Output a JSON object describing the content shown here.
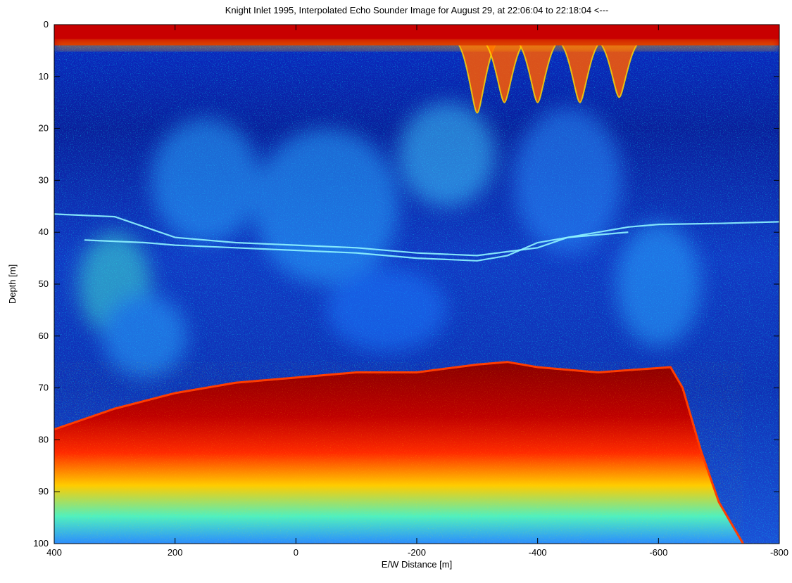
{
  "chart_data": {
    "type": "heatmap",
    "title": "Knight Inlet 1995, Interpolated Echo Sounder Image for August 29, at 22:06:04 to 22:18:04  <---",
    "xlabel": "E/W Distance [m]",
    "ylabel": "Depth [m]",
    "xlim": [
      400,
      -800
    ],
    "ylim": [
      0,
      100
    ],
    "y_reversed": true,
    "grid": false,
    "x_ticks": [
      400,
      200,
      0,
      -200,
      -400,
      -600,
      -800
    ],
    "x_tick_labels": [
      "400",
      "200",
      "0",
      "-200",
      "-400",
      "-600",
      "-800"
    ],
    "y_ticks": [
      0,
      10,
      20,
      30,
      40,
      50,
      60,
      70,
      80,
      90,
      100
    ],
    "y_tick_labels": [
      "0",
      "10",
      "20",
      "30",
      "40",
      "50",
      "60",
      "70",
      "80",
      "90",
      "100"
    ],
    "colormap": [
      "#000080",
      "#0000ff",
      "#0080ff",
      "#00ffff",
      "#80ff80",
      "#ffff00",
      "#ff8000",
      "#ff0000",
      "#800000"
    ],
    "surface_layer_depth": [
      0,
      3
    ],
    "seabed_profile": {
      "x": [
        400,
        300,
        200,
        100,
        0,
        -100,
        -200,
        -300,
        -350,
        -400,
        -500,
        -620,
        -640,
        -670,
        -700,
        -740
      ],
      "depth": [
        78,
        74,
        71,
        69,
        68,
        67,
        67,
        65.5,
        65,
        66,
        67,
        66,
        70,
        82,
        92,
        100
      ]
    },
    "scattering_lines": [
      {
        "x": [
          400,
          300,
          250,
          200,
          100,
          0,
          -100,
          -200,
          -300,
          -400,
          -450,
          -500,
          -550,
          -600,
          -700,
          -800
        ],
        "depth": [
          36.5,
          37,
          39,
          41,
          42,
          42.5,
          43,
          44,
          44.5,
          43,
          41,
          40,
          39,
          38.5,
          38.3,
          38
        ]
      },
      {
        "x": [
          350,
          250,
          200,
          100,
          0,
          -100,
          -200,
          -300,
          -350,
          -400,
          -450,
          -500,
          -550
        ],
        "depth": [
          41.5,
          42,
          42.5,
          43,
          43.5,
          44,
          45,
          45.5,
          44.5,
          42,
          41,
          40.5,
          40
        ]
      }
    ],
    "internal_waves": [
      {
        "x": -300,
        "trough_depth": 17
      },
      {
        "x": -345,
        "trough_depth": 15
      },
      {
        "x": -400,
        "trough_depth": 15
      },
      {
        "x": -470,
        "trough_depth": 15
      },
      {
        "x": -535,
        "trough_depth": 14
      }
    ]
  }
}
